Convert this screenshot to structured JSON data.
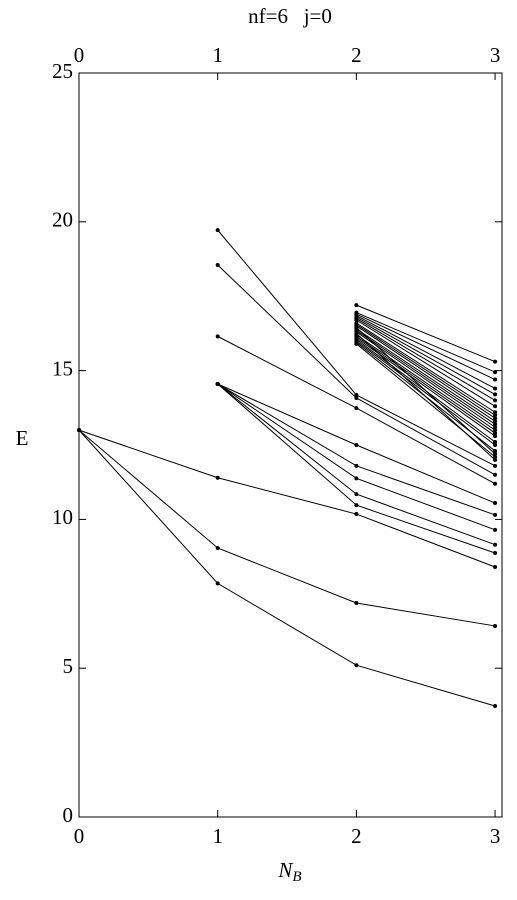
{
  "chart_data": {
    "type": "line",
    "title": "nf=6   j=0",
    "xlabel": "N",
    "xlabel_subscript": "B",
    "ylabel": "E",
    "color": "#000000",
    "x": [
      0,
      1,
      2,
      3
    ],
    "xlim": [
      0,
      3.05
    ],
    "xticks": [
      0,
      1,
      2,
      3
    ],
    "ylim": [
      0,
      25
    ],
    "yticks": [
      0,
      5,
      10,
      15,
      20,
      25
    ],
    "series": [
      {
        "values": [
          13,
          7.85,
          5.1,
          3.73
        ]
      },
      {
        "values": [
          13,
          9.04,
          7.19,
          6.42
        ]
      },
      {
        "values": [
          13,
          11.4,
          10.18,
          8.4
        ]
      },
      {
        "values": [
          null,
          14.55,
          12.5,
          10.55
        ]
      },
      {
        "values": [
          null,
          14.55,
          11.8,
          10.15
        ]
      },
      {
        "values": [
          null,
          14.55,
          11.38,
          9.65
        ]
      },
      {
        "values": [
          null,
          14.55,
          10.85,
          9.15
        ]
      },
      {
        "values": [
          null,
          14.55,
          10.48,
          8.87
        ]
      },
      {
        "values": [
          null,
          16.15,
          13.74,
          11.2
        ]
      },
      {
        "values": [
          null,
          18.55,
          14.08,
          11.5
        ]
      },
      {
        "values": [
          null,
          19.72,
          14.18,
          11.8
        ]
      },
      {
        "values": [
          null,
          null,
          17.2,
          15.3
        ]
      },
      {
        "values": [
          null,
          null,
          16.95,
          14.95
        ]
      },
      {
        "values": [
          null,
          null,
          16.9,
          14.7
        ]
      },
      {
        "values": [
          null,
          null,
          16.85,
          14.4
        ]
      },
      {
        "values": [
          null,
          null,
          16.8,
          14.2
        ]
      },
      {
        "values": [
          null,
          null,
          16.75,
          14.0
        ]
      },
      {
        "values": [
          null,
          null,
          16.7,
          13.8
        ]
      },
      {
        "values": [
          null,
          null,
          16.6,
          13.6
        ]
      },
      {
        "values": [
          null,
          null,
          16.55,
          13.5
        ]
      },
      {
        "values": [
          null,
          null,
          16.5,
          13.4
        ]
      },
      {
        "values": [
          null,
          null,
          16.4,
          13.3
        ]
      },
      {
        "values": [
          null,
          null,
          16.35,
          13.2
        ]
      },
      {
        "values": [
          null,
          null,
          16.3,
          13.1
        ]
      },
      {
        "values": [
          null,
          null,
          16.2,
          13.0
        ]
      },
      {
        "values": [
          null,
          null,
          16.15,
          12.9
        ]
      },
      {
        "values": [
          null,
          null,
          16.1,
          12.8
        ]
      },
      {
        "values": [
          null,
          null,
          16.05,
          12.6
        ]
      },
      {
        "values": [
          null,
          null,
          16.0,
          12.5
        ]
      },
      {
        "values": [
          null,
          null,
          15.95,
          12.3
        ]
      },
      {
        "values": [
          null,
          null,
          15.9,
          12.1
        ]
      },
      {
        "values": [
          null,
          null,
          16.25,
          12.0
        ]
      },
      {
        "values": [
          null,
          null,
          16.45,
          12.2
        ]
      }
    ]
  }
}
